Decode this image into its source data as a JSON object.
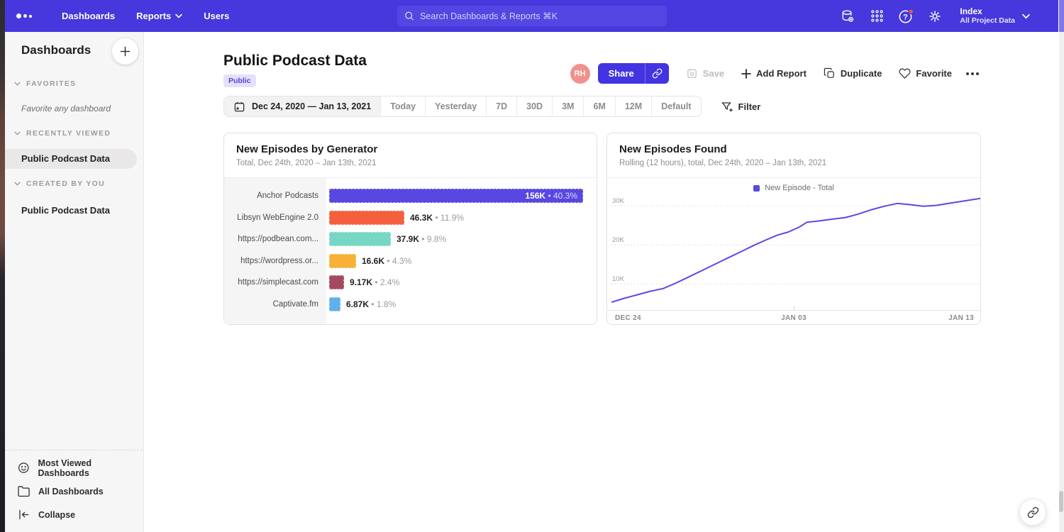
{
  "navbar": {
    "menu": [
      "Dashboards",
      "Reports",
      "Users"
    ],
    "search_placeholder": "Search Dashboards & Reports ⌘K",
    "help_glyph": "?",
    "workspace": {
      "name": "Index",
      "scope": "All Project Data"
    }
  },
  "sidebar": {
    "title": "Dashboards",
    "sections": [
      {
        "label": "FAVORITES",
        "hint": "Favorite any dashboard"
      },
      {
        "label": "RECENTLY VIEWED",
        "items": [
          "Public Podcast Data"
        ]
      },
      {
        "label": "CREATED BY YOU",
        "items": [
          "Public Podcast Data"
        ]
      }
    ],
    "footer": [
      "Most Viewed Dashboards",
      "All Dashboards",
      "Collapse"
    ]
  },
  "header": {
    "title": "Public Podcast Data",
    "badge": "Public",
    "avatar": "RH",
    "actions": {
      "share": "Share",
      "save": "Save",
      "add_report": "Add Report",
      "duplicate": "Duplicate",
      "favorite": "Favorite"
    }
  },
  "date_controls": {
    "range": "Dec 24, 2020 — Jan 13, 2021",
    "presets": [
      "Today",
      "Yesterday",
      "7D",
      "30D",
      "3M",
      "6M",
      "12M",
      "Default"
    ],
    "filter": "Filter"
  },
  "colors": {
    "accent": "#4334E2",
    "navbar": "#4638DC",
    "alert": "#F0573D"
  },
  "chart_data": [
    {
      "type": "bar",
      "orientation": "horizontal",
      "title": "New Episodes by Generator",
      "subtitle": "Total, Dec 24th, 2020 – Jan 13th, 2021",
      "categories": [
        "Anchor Podcasts",
        "Libsyn WebEngine 2.0",
        "https://podbean.com...",
        "https://wordpress.or...",
        "https://simplecast.com",
        "Captivate.fm"
      ],
      "values": [
        156000,
        46300,
        37900,
        16600,
        9170,
        6870
      ],
      "value_labels": [
        "156K",
        "46.3K",
        "37.9K",
        "16.6K",
        "9.17K",
        "6.87K"
      ],
      "percent_labels": [
        "• 40.3%",
        "• 11.9%",
        "• 9.8%",
        "• 4.3%",
        "• 2.4%",
        "• 1.8%"
      ],
      "bar_colors": [
        "#5847E0",
        "#F4603C",
        "#76D7C4",
        "#F6B136",
        "#A4495E",
        "#5FB0EC"
      ],
      "xmax": 156000
    },
    {
      "type": "line",
      "title": "New Episodes Found",
      "subtitle": "Rolling (12 hours), total, Dec 24th, 2020 – Jan 13th, 2021",
      "legend": "New Episode - Total",
      "line_color": "#5A49E3",
      "x_ticks": [
        "DEC 24",
        "JAN 03",
        "JAN 13"
      ],
      "y_grid": [
        {
          "label": "10K",
          "value": 10000
        },
        {
          "label": "20K",
          "value": 20000
        },
        {
          "label": "30K",
          "value": 30000
        }
      ],
      "ylim": [
        3300,
        33300
      ],
      "x": [
        0,
        0.035,
        0.07,
        0.105,
        0.14,
        0.175,
        0.21,
        0.245,
        0.28,
        0.315,
        0.35,
        0.385,
        0.42,
        0.45,
        0.48,
        0.51,
        0.53,
        0.56,
        0.6,
        0.635,
        0.67,
        0.705,
        0.74,
        0.775,
        0.81,
        0.845,
        0.88,
        0.92,
        0.96,
        1
      ],
      "values": [
        5300,
        6300,
        7200,
        8100,
        8800,
        10200,
        11800,
        13400,
        15000,
        16600,
        18200,
        19800,
        21300,
        22500,
        23300,
        24600,
        25800,
        26100,
        26600,
        27000,
        27900,
        29000,
        29900,
        30600,
        30300,
        29900,
        30100,
        30700,
        31300,
        31900
      ]
    }
  ]
}
